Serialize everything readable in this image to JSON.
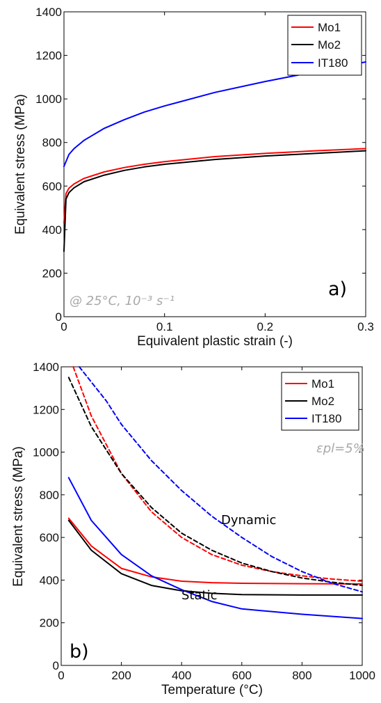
{
  "chart_data": [
    {
      "type": "line",
      "panel": "a)",
      "annotation": "@ 25°C, 10⁻³ s⁻¹",
      "xlabel": "Equivalent plastic strain (-)",
      "ylabel": "Equivalent stress (MPa)",
      "xlim": [
        0,
        0.3
      ],
      "ylim": [
        0,
        1400
      ],
      "xticks": [
        "0",
        "0.1",
        "0.2",
        "0.3"
      ],
      "yticks": [
        "0",
        "200",
        "400",
        "600",
        "800",
        "1000",
        "1200",
        "1400"
      ],
      "legend_position": "top-right",
      "grid": false,
      "series": [
        {
          "name": "Mo1",
          "color": "#ff0000",
          "x": [
            0,
            0.002,
            0.005,
            0.01,
            0.02,
            0.04,
            0.06,
            0.08,
            0.1,
            0.15,
            0.2,
            0.25,
            0.3
          ],
          "y": [
            430,
            565,
            590,
            610,
            635,
            665,
            685,
            700,
            712,
            735,
            750,
            762,
            772
          ]
        },
        {
          "name": "Mo2",
          "color": "#000000",
          "x": [
            0,
            0.002,
            0.005,
            0.01,
            0.02,
            0.04,
            0.06,
            0.08,
            0.1,
            0.15,
            0.2,
            0.25,
            0.3
          ],
          "y": [
            300,
            540,
            570,
            592,
            620,
            650,
            672,
            688,
            700,
            722,
            738,
            750,
            762
          ]
        },
        {
          "name": "IT180",
          "color": "#0000ff",
          "x": [
            0,
            0.005,
            0.01,
            0.02,
            0.04,
            0.06,
            0.08,
            0.1,
            0.15,
            0.2,
            0.25,
            0.3
          ],
          "y": [
            690,
            745,
            772,
            810,
            865,
            905,
            940,
            968,
            1030,
            1080,
            1125,
            1170
          ]
        }
      ]
    },
    {
      "type": "line",
      "panel": "b)",
      "annotation": "εpl=5%",
      "curve_labels": [
        "Dynamic",
        "Static"
      ],
      "xlabel": "Temperature (°C)",
      "ylabel": "Equivalent stress (MPa)",
      "xlim": [
        0,
        1000
      ],
      "ylim": [
        0,
        1400
      ],
      "xticks": [
        "0",
        "200",
        "400",
        "600",
        "800",
        "1000"
      ],
      "yticks": [
        "0",
        "200",
        "400",
        "600",
        "800",
        "1000",
        "1200",
        "1400"
      ],
      "legend_position": "top-right",
      "grid": false,
      "series": [
        {
          "name": "Mo1",
          "color": "#ff0000",
          "style": "solid",
          "x": [
            25,
            100,
            200,
            300,
            400,
            500,
            600,
            800,
            1000
          ],
          "y": [
            690,
            560,
            455,
            415,
            395,
            388,
            385,
            383,
            382
          ]
        },
        {
          "name": "Mo2",
          "color": "#000000",
          "style": "solid",
          "x": [
            25,
            100,
            200,
            300,
            400,
            500,
            600,
            800,
            1000
          ],
          "y": [
            680,
            540,
            430,
            375,
            350,
            338,
            332,
            330,
            330
          ]
        },
        {
          "name": "IT180",
          "color": "#0000ff",
          "style": "solid",
          "x": [
            25,
            100,
            200,
            300,
            400,
            500,
            600,
            800,
            1000
          ],
          "y": [
            880,
            680,
            520,
            420,
            355,
            300,
            265,
            240,
            220
          ]
        },
        {
          "x": [
            40,
            100,
            200,
            300,
            400,
            500,
            600,
            700,
            800,
            900,
            1000
          ],
          "y": [
            1400,
            1170,
            900,
            720,
            600,
            520,
            470,
            440,
            420,
            405,
            395
          ],
          "color": "#ff0000",
          "style": "dashed"
        },
        {
          "x": [
            25,
            100,
            200,
            300,
            400,
            500,
            600,
            700,
            800,
            900,
            1000
          ],
          "y": [
            1350,
            1120,
            900,
            740,
            620,
            540,
            480,
            440,
            410,
            390,
            375
          ],
          "color": "#000000",
          "style": "dashed"
        },
        {
          "x": [
            60,
            150,
            200,
            300,
            400,
            500,
            600,
            700,
            800,
            900,
            1000
          ],
          "y": [
            1400,
            1240,
            1130,
            960,
            820,
            700,
            600,
            510,
            440,
            385,
            345
          ],
          "color": "#0000ff",
          "style": "dashed"
        }
      ]
    }
  ]
}
